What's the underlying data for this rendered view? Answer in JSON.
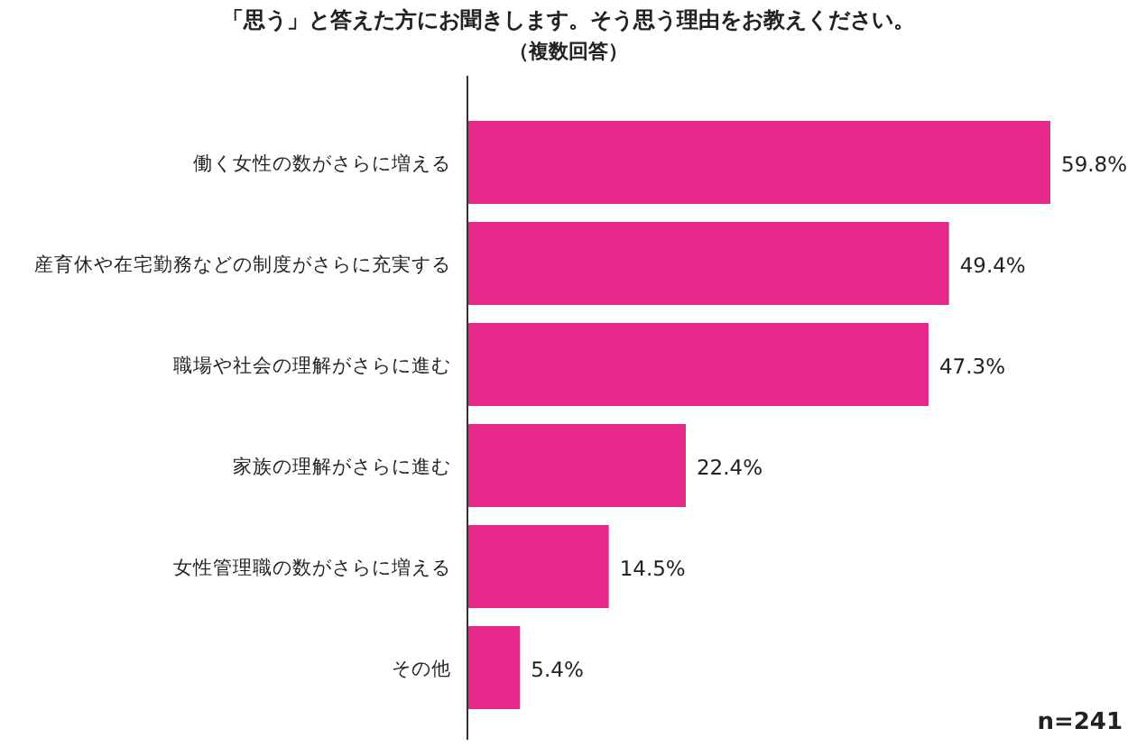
{
  "chart_data": {
    "type": "bar",
    "orientation": "horizontal",
    "title": "「思う」と答えた方にお聞きします。そう思う理由をお教えください。",
    "subtitle": "（複数回答）",
    "categories": [
      "働く女性の数がさらに増える",
      "産育休や在宅勤務などの制度がさらに充実する",
      "職場や社会の理解がさらに進む",
      "家族の理解がさらに進む",
      "女性管理職の数がさらに増える",
      "その他"
    ],
    "values": [
      59.8,
      49.4,
      47.3,
      22.4,
      14.5,
      5.4
    ],
    "color": "#e6288a",
    "value_labels": [
      "59.8%",
      "49.4%",
      "47.3%",
      "22.4%",
      "14.5%",
      "5.4%"
    ],
    "annotations": [
      "n=241"
    ]
  }
}
